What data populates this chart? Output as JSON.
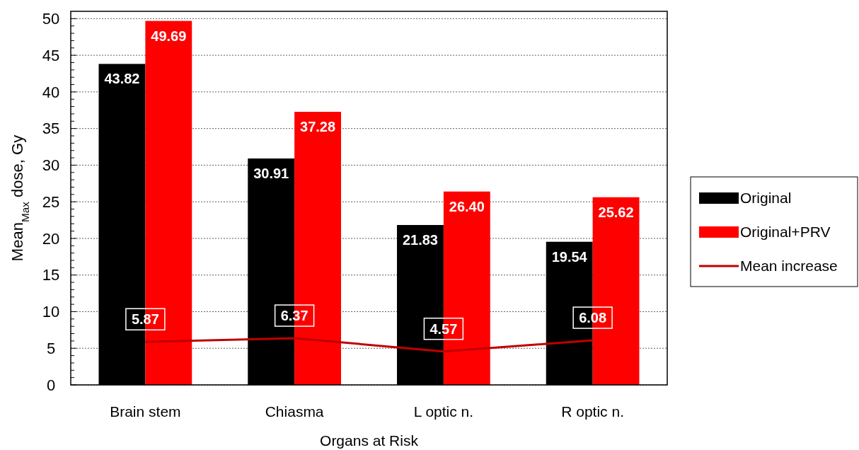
{
  "chart_data": {
    "type": "bar",
    "xlabel": "Organs at Risk",
    "ylabel": "Mean$_{Max}$ dose, Gy",
    "categories": [
      "Brain stem",
      "Chiasma",
      "L optic n.",
      "R optic n."
    ],
    "series": [
      {
        "name": "Original",
        "color": "#000000",
        "values": [
          43.82,
          30.91,
          21.83,
          19.54
        ],
        "value_labels": [
          "43.82",
          "30.91",
          "21.83",
          "19.54"
        ]
      },
      {
        "name": "Original+PRV",
        "color": "#ff0000",
        "values": [
          49.69,
          37.28,
          26.4,
          25.62
        ],
        "value_labels": [
          "49.69",
          "37.28",
          "26.40",
          "25.62"
        ]
      },
      {
        "name": "Mean increase",
        "type": "line",
        "color": "#c00000",
        "values": [
          5.87,
          6.37,
          4.57,
          6.08
        ],
        "value_labels": [
          "5.87",
          "6.37",
          "4.57",
          "6.08"
        ]
      }
    ],
    "ylim": [
      0,
      51
    ],
    "yticks": [
      0,
      {
        "value": 1,
        "label": null
      },
      {
        "value": 2,
        "label": null
      },
      {
        "value": 3,
        "label": null
      },
      {
        "value": 4,
        "label": null
      },
      5,
      {
        "value": 6,
        "label": null
      },
      {
        "value": 7,
        "label": null
      },
      {
        "value": 8,
        "label": null
      },
      {
        "value": 9,
        "label": null
      },
      10,
      {
        "value": 11,
        "label": null
      },
      {
        "value": 12,
        "label": null
      },
      {
        "value": 13,
        "label": null
      },
      {
        "value": 14,
        "label": null
      },
      15,
      {
        "value": 16,
        "label": null
      },
      {
        "value": 17,
        "label": null
      },
      {
        "value": 18,
        "label": null
      },
      {
        "value": 19,
        "label": null
      },
      20,
      {
        "value": 21,
        "label": null
      },
      {
        "value": 22,
        "label": null
      },
      {
        "value": 23,
        "label": null
      },
      {
        "value": 24,
        "label": null
      },
      25,
      {
        "value": 26,
        "label": null
      },
      {
        "value": 27,
        "label": null
      },
      {
        "value": 28,
        "label": null
      },
      {
        "value": 29,
        "label": null
      },
      30,
      {
        "value": 31,
        "label": null
      },
      {
        "value": 32,
        "label": null
      },
      {
        "value": 33,
        "label": null
      },
      {
        "value": 34,
        "label": null
      },
      35,
      {
        "value": 36,
        "label": null
      },
      {
        "value": 37,
        "label": null
      },
      {
        "value": 38,
        "label": null
      },
      {
        "value": 39,
        "label": null
      },
      40,
      {
        "value": 41,
        "label": null
      },
      {
        "value": 42,
        "label": null
      },
      {
        "value": 43,
        "label": null
      },
      {
        "value": 44,
        "label": null
      },
      45,
      {
        "value": 46,
        "label": null
      },
      {
        "value": 47,
        "label": null
      },
      {
        "value": 48,
        "label": null
      },
      {
        "value": 49,
        "label": null
      },
      50
    ],
    "grid": "y",
    "legend": "right",
    "marker": "none",
    "line_style": "solid"
  }
}
